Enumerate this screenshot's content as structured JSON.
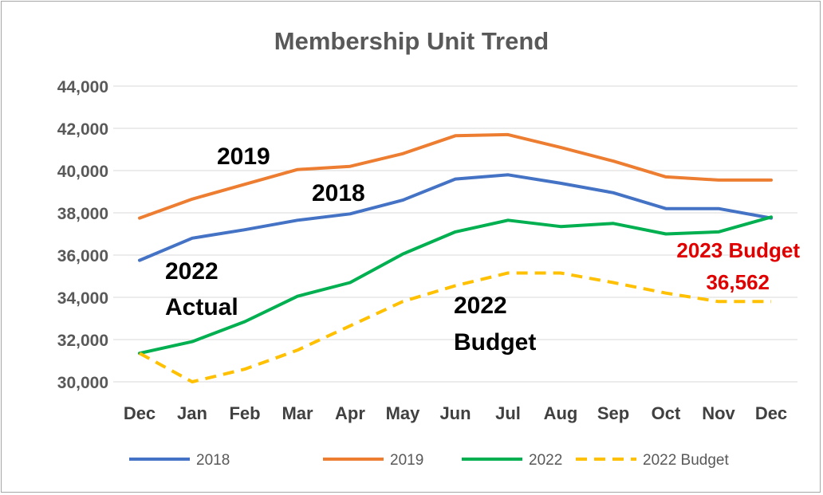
{
  "chart_data": {
    "type": "line",
    "title": "Membership Unit Trend",
    "categories": [
      "Dec",
      "Jan",
      "Feb",
      "Mar",
      "Apr",
      "May",
      "Jun",
      "Jul",
      "Aug",
      "Sep",
      "Oct",
      "Nov",
      "Dec"
    ],
    "ylim": [
      30000,
      44000
    ],
    "yticks": [
      {
        "value": 30000,
        "label": "30,000"
      },
      {
        "value": 32000,
        "label": "32,000"
      },
      {
        "value": 34000,
        "label": "34,000"
      },
      {
        "value": 36000,
        "label": "36,000"
      },
      {
        "value": 38000,
        "label": "38,000"
      },
      {
        "value": 40000,
        "label": "40,000"
      },
      {
        "value": 42000,
        "label": "42,000"
      },
      {
        "value": 44000,
        "label": "44,000"
      }
    ],
    "grid": true,
    "legend_position": "bottom",
    "series": [
      {
        "name": "2018",
        "color": "#4472c4",
        "dash": "solid",
        "values": [
          35750,
          36800,
          37200,
          37650,
          37950,
          38600,
          39600,
          39800,
          39400,
          38950,
          38200,
          38200,
          37750
        ]
      },
      {
        "name": "2019",
        "color": "#ed7d31",
        "dash": "solid",
        "values": [
          37750,
          38650,
          39350,
          40050,
          40200,
          40800,
          41650,
          41700,
          41100,
          40450,
          39700,
          39550,
          39550
        ]
      },
      {
        "name": "2022",
        "color": "#00b050",
        "dash": "solid",
        "values": [
          31350,
          31900,
          32850,
          34050,
          34700,
          36050,
          37100,
          37650,
          37350,
          37500,
          37000,
          37100,
          37800
        ]
      },
      {
        "name": "2022 Budget",
        "color": "#ffc000",
        "dash": "dashed",
        "values": [
          31350,
          30000,
          30600,
          31500,
          32650,
          33800,
          34550,
          35150,
          35150,
          34700,
          34200,
          33800,
          33800
        ]
      }
    ],
    "annotations": [
      {
        "id": "2019",
        "lines": [
          "2019"
        ],
        "style": "black"
      },
      {
        "id": "2018",
        "lines": [
          "2018"
        ],
        "style": "black"
      },
      {
        "id": "2022-actual",
        "lines": [
          "2022",
          "Actual"
        ],
        "style": "black"
      },
      {
        "id": "2022-budget",
        "lines": [
          "2022",
          "Budget"
        ],
        "style": "black"
      },
      {
        "id": "2023-budget",
        "lines": [
          "2023 Budget",
          "36,562"
        ],
        "style": "red"
      }
    ]
  }
}
